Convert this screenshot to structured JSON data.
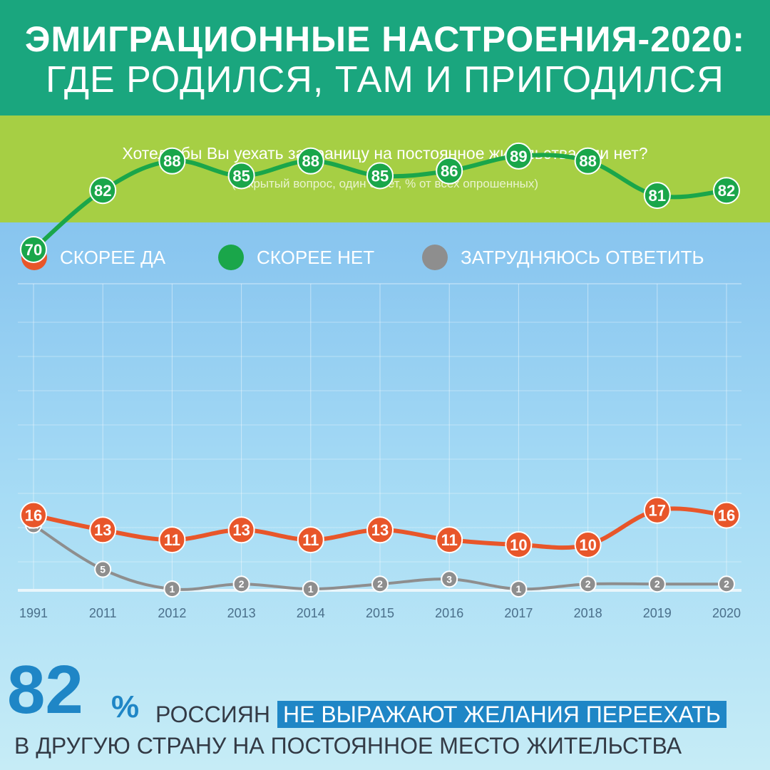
{
  "header": {
    "title_line1": "ЭМИГРАЦИОННЫЕ НАСТРОЕНИЯ-2020:",
    "title_line2": "ГДЕ РОДИЛСЯ, ТАМ И ПРИГОДИЛСЯ"
  },
  "question": {
    "text": "Хотели бы Вы уехать за границу на постоянное жительства или нет?",
    "note": "(закрытый вопрос, один ответ, % от всех опрошенных)"
  },
  "legend": [
    {
      "label": "СКОРЕЕ ДА",
      "color": "#e8562a"
    },
    {
      "label": "СКОРЕЕ НЕТ",
      "color": "#1aa64a"
    },
    {
      "label": "ЗАТРУДНЯЮСЬ ОТВЕТИТЬ",
      "color": "#8e8e8e"
    }
  ],
  "chart_data": {
    "type": "line",
    "x": [
      "1991",
      "2011",
      "2012",
      "2013",
      "2014",
      "2015",
      "2016",
      "2017",
      "2018",
      "2019",
      "2020"
    ],
    "series": [
      {
        "name": "СКОРЕЕ ДА",
        "color": "#e8562a",
        "values": [
          16,
          13,
          11,
          13,
          11,
          13,
          11,
          10,
          10,
          17,
          16
        ]
      },
      {
        "name": "СКОРЕЕ НЕТ",
        "color": "#1aa64a",
        "values": [
          70,
          82,
          88,
          85,
          88,
          85,
          86,
          89,
          88,
          81,
          82
        ]
      },
      {
        "name": "ЗАТРУДНЯЮСЬ ОТВЕТИТЬ",
        "color": "#8e8e8e",
        "values": [
          14,
          5,
          1,
          2,
          1,
          2,
          3,
          1,
          2,
          2,
          2
        ]
      }
    ],
    "ylim": [
      0,
      100
    ],
    "grid": true
  },
  "summary": {
    "value": "82",
    "percent": "%",
    "word": "РОССИЯН",
    "highlight": "НЕ ВЫРАЖАЮТ ЖЕЛАНИЯ ПЕРЕЕХАТЬ",
    "line2": "В ДРУГУЮ СТРАНУ НА ПОСТОЯННОЕ МЕСТО ЖИТЕЛЬСТВА"
  }
}
